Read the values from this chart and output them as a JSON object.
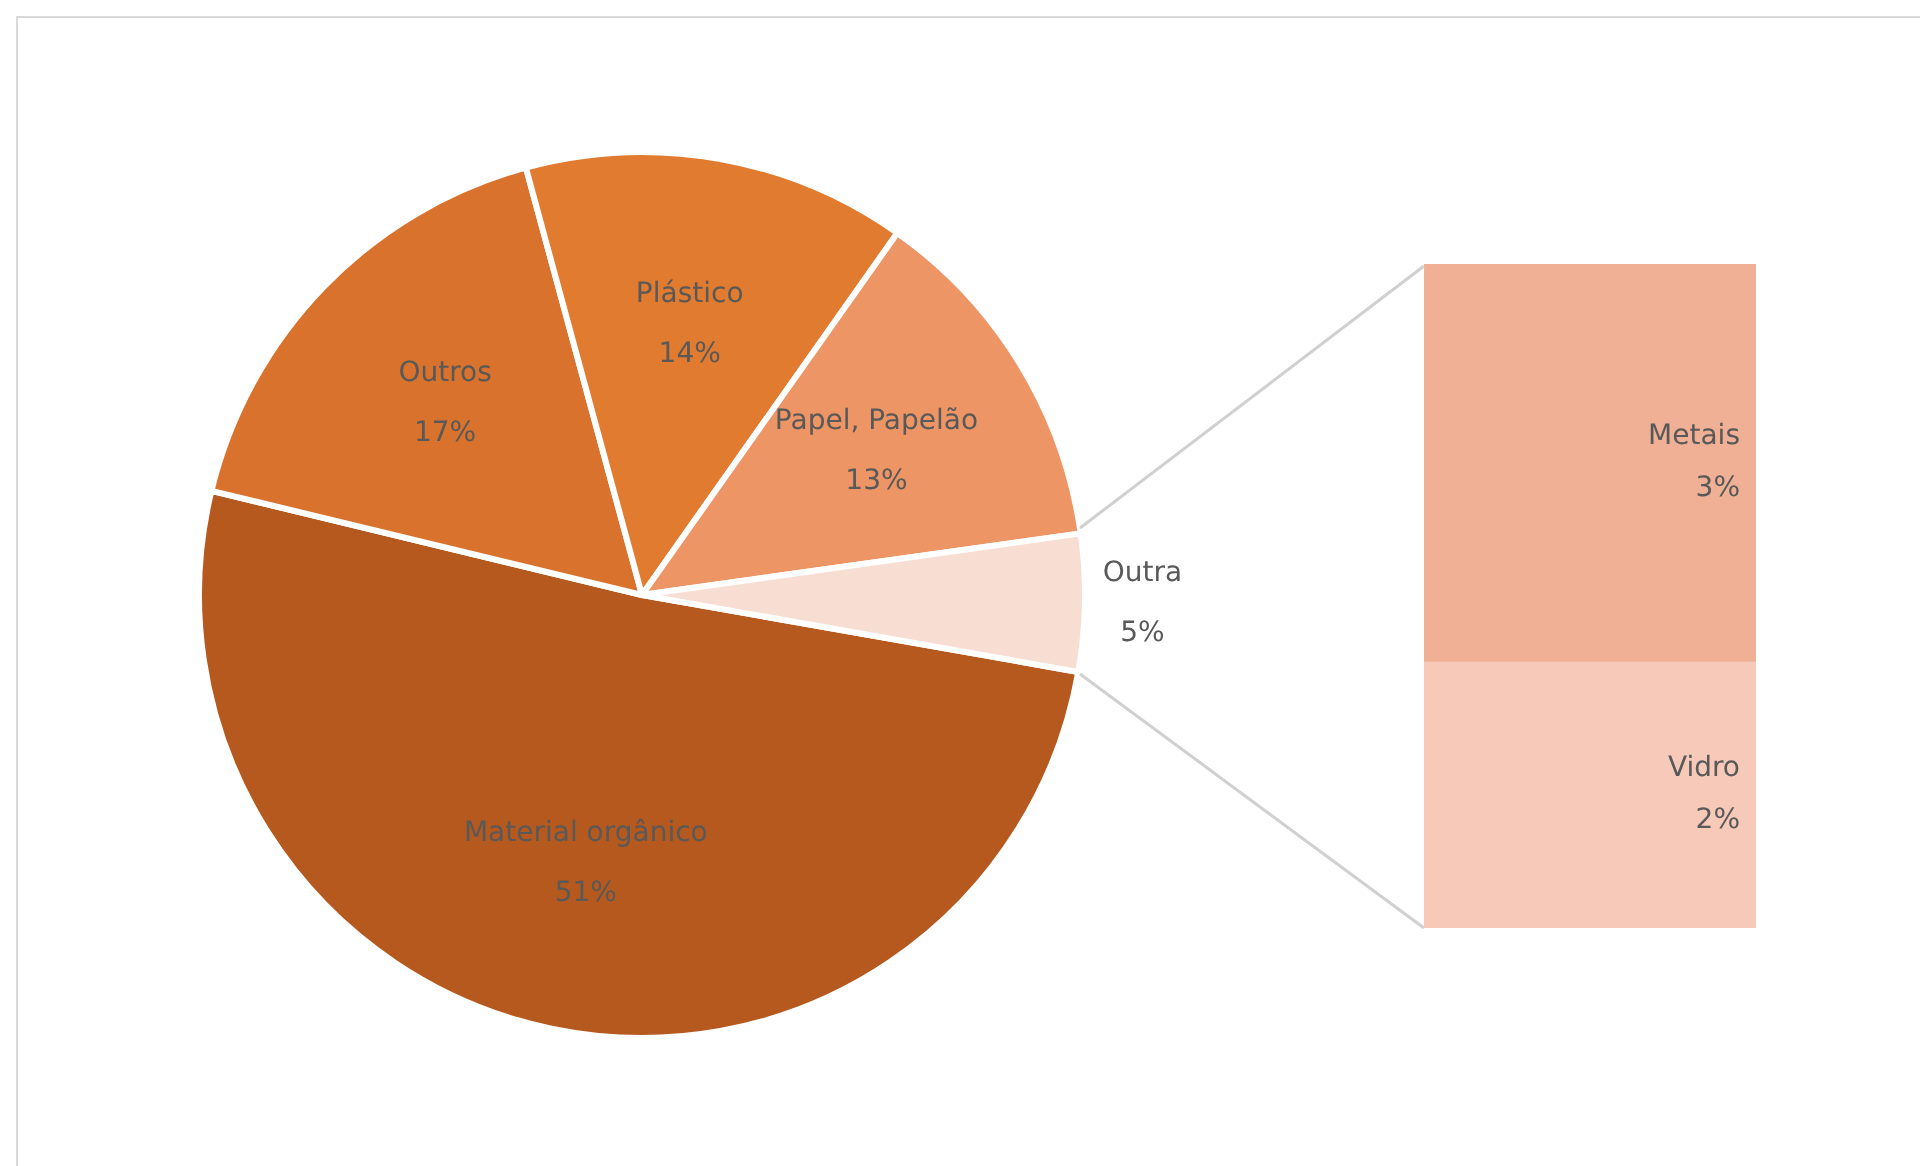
{
  "chart_data": [
    {
      "type": "pie",
      "categories": [
        "Material orgânico",
        "Outros",
        "Plástico",
        "Papel, Papelão",
        "Outra"
      ],
      "values": [
        51,
        17,
        14,
        13,
        5
      ],
      "colors": [
        "#b5591f",
        "#d9722c",
        "#e07b2f",
        "#ee9566",
        "#f8ddd2"
      ],
      "value_labels": [
        "51%",
        "17%",
        "14%",
        "13%",
        "5%"
      ]
    },
    {
      "type": "bar",
      "stacked": true,
      "categories": [
        null
      ],
      "series": [
        {
          "name": "Vidro",
          "color": "#f6c9b8",
          "values": [
            2
          ],
          "value_labels": [
            "2%"
          ]
        },
        {
          "name": "Metais",
          "color": "#f0b096",
          "values": [
            3
          ],
          "value_labels": [
            "3%"
          ]
        }
      ]
    }
  ]
}
